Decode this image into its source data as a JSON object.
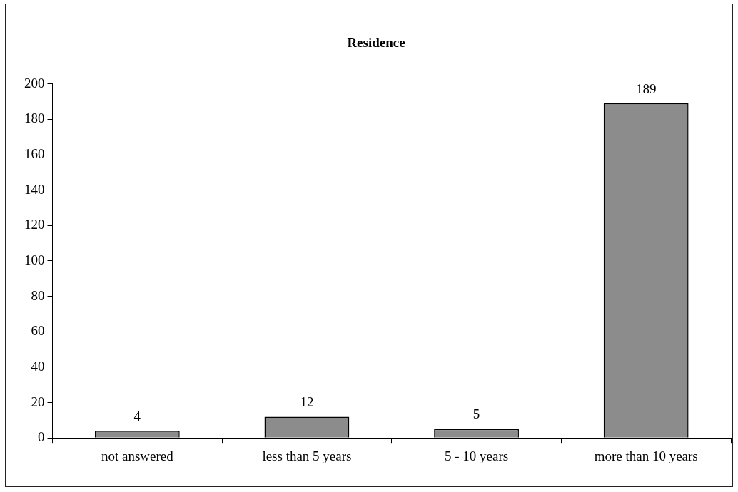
{
  "chart_data": {
    "type": "bar",
    "title": "Residence",
    "categories": [
      "not answered",
      "less than 5 years",
      "5 - 10 years",
      "more than 10 years"
    ],
    "values": [
      4,
      12,
      5,
      189
    ],
    "color": "#8c8c8c",
    "ylim": [
      0,
      200
    ],
    "yticks": [
      0,
      20,
      40,
      60,
      80,
      100,
      120,
      140,
      160,
      180,
      200
    ],
    "grid": false,
    "legend": false,
    "data_labels": true
  }
}
